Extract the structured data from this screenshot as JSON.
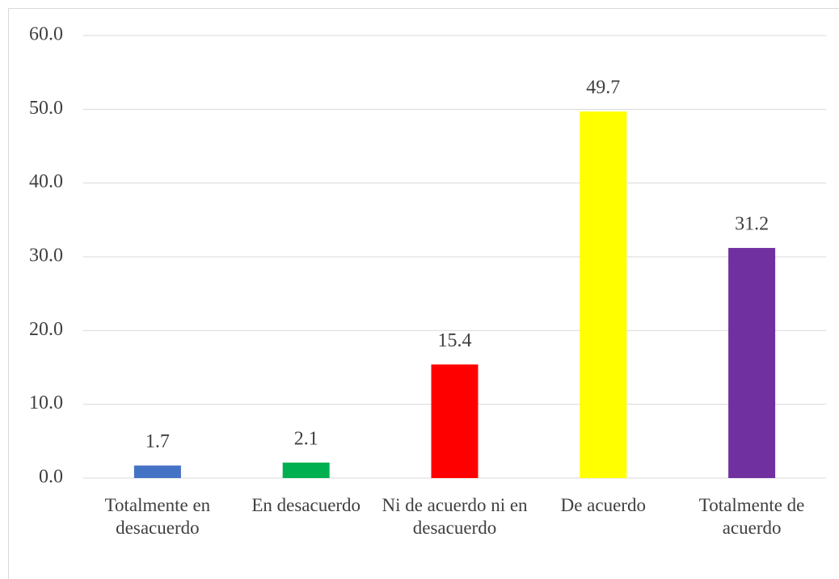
{
  "chart_data": {
    "type": "bar",
    "categories": [
      "Totalmente en desacuerdo",
      "En desacuerdo",
      "Ni de acuerdo ni en desacuerdo",
      "De acuerdo",
      "Totalmente de acuerdo"
    ],
    "values": [
      1.7,
      2.1,
      15.4,
      49.7,
      31.2
    ],
    "colors": [
      "#4472c4",
      "#00b050",
      "#ff0000",
      "#ffff00",
      "#7030a0"
    ],
    "ylim": [
      0,
      60
    ],
    "yticks": [
      {
        "value": 0,
        "label": "0.0"
      },
      {
        "value": 10,
        "label": "10.0"
      },
      {
        "value": 20,
        "label": "20.0"
      },
      {
        "value": 30,
        "label": "30.0"
      },
      {
        "value": 40,
        "label": "40.0"
      },
      {
        "value": 50,
        "label": "50.0"
      },
      {
        "value": 60,
        "label": "60.0"
      }
    ],
    "grid": true
  }
}
